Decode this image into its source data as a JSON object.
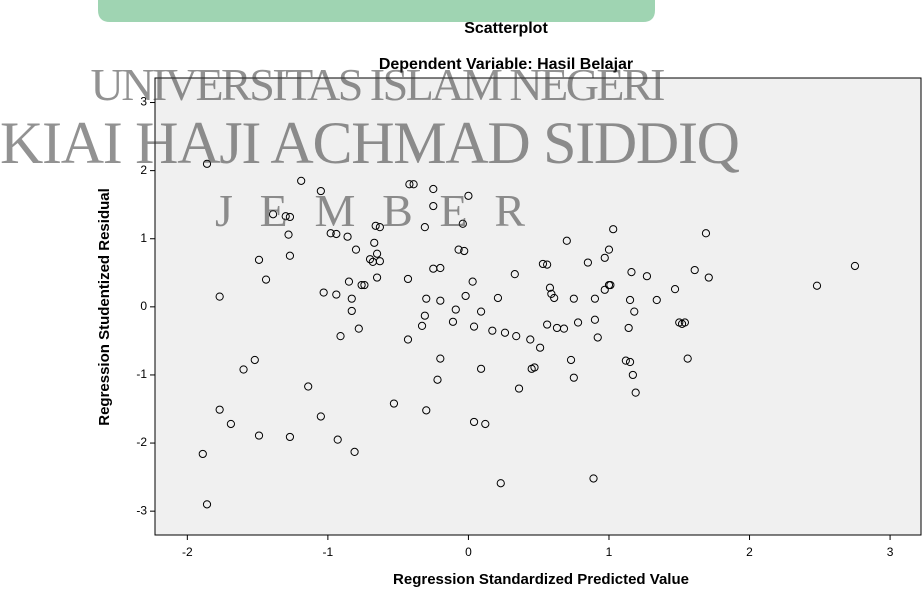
{
  "chart_data": {
    "type": "scatter",
    "title": "Scatterplot",
    "subtitle": "Dependent Variable: Hasil Belajar",
    "x_label": "Regression Standardized Predicted Value",
    "y_label": "Regression Studentized Residual",
    "watermark": [
      "UNIVERSITAS ISLAM NEGERI",
      "KIAI HAJI ACHMAD SIDDIQ",
      "J E M B E R"
    ],
    "xlim": [
      -2.23,
      3.22
    ],
    "ylim": [
      -3.35,
      3.36
    ],
    "xticks": [
      -2,
      -1,
      0,
      1,
      2,
      3
    ],
    "yticks": [
      -3,
      -2,
      -1,
      0,
      1,
      2,
      3
    ],
    "grid": false,
    "color": "#000000",
    "x": [
      -1.86,
      -1.19,
      -0.42,
      -0.39,
      -0.25,
      0.0,
      -1.05,
      -0.25,
      -1.39,
      -1.3,
      -1.27,
      -0.66,
      -0.63,
      -0.31,
      -0.04,
      -1.28,
      -0.98,
      -0.94,
      -0.86,
      1.03,
      0.7,
      -0.67,
      -1.27,
      -1.49,
      -0.8,
      -0.65,
      -0.03,
      -0.07,
      1.69,
      1.0,
      0.97,
      -0.68,
      -0.7,
      -0.63,
      0.85,
      0.53,
      0.56,
      -0.2,
      -0.25,
      1.61,
      1.16,
      0.33,
      1.27,
      1.71,
      -1.44,
      -0.65,
      -0.85,
      -0.76,
      -0.74,
      -0.43,
      0.03,
      0.58,
      0.59,
      0.61,
      1.0,
      1.01,
      0.97,
      1.47,
      -1.77,
      -1.03,
      -0.94,
      -0.83,
      -0.02,
      -0.3,
      -0.2,
      0.21,
      0.75,
      0.9,
      1.34,
      1.15,
      -0.83,
      -0.31,
      -0.09,
      0.09,
      1.18,
      1.54,
      1.52,
      1.5,
      0.78,
      0.9,
      0.56,
      0.63,
      0.68,
      1.14,
      -0.11,
      -0.33,
      -0.78,
      0.04,
      0.17,
      0.26,
      0.34,
      0.44,
      0.51,
      -0.91,
      -0.43,
      0.92,
      -1.52,
      -1.6,
      -0.2,
      0.73,
      1.12,
      1.15,
      1.56,
      0.09,
      0.47,
      0.45,
      -0.22,
      0.75,
      1.17,
      -1.14,
      0.36,
      1.19,
      -0.53,
      -1.77,
      -0.3,
      -1.05,
      -1.69,
      0.04,
      0.12,
      -1.49,
      -1.27,
      -0.93,
      -0.81,
      -1.89,
      0.23,
      0.89,
      -1.86,
      2.48,
      2.75
    ],
    "y": [
      2.1,
      1.85,
      1.8,
      1.8,
      1.73,
      1.63,
      1.7,
      1.48,
      1.36,
      1.33,
      1.32,
      1.19,
      1.17,
      1.17,
      1.22,
      1.06,
      1.08,
      1.07,
      1.03,
      1.14,
      0.97,
      0.94,
      0.75,
      0.69,
      0.84,
      0.78,
      0.82,
      0.84,
      1.08,
      0.84,
      0.72,
      0.66,
      0.7,
      0.67,
      0.65,
      0.63,
      0.62,
      0.57,
      0.56,
      0.54,
      0.51,
      0.48,
      0.45,
      0.43,
      0.4,
      0.43,
      0.37,
      0.32,
      0.32,
      0.41,
      0.37,
      0.28,
      0.19,
      0.13,
      0.32,
      0.32,
      0.25,
      0.26,
      0.15,
      0.21,
      0.18,
      0.12,
      0.16,
      0.12,
      0.09,
      0.13,
      0.12,
      0.12,
      0.1,
      0.1,
      -0.06,
      -0.13,
      -0.04,
      -0.07,
      -0.07,
      -0.23,
      -0.25,
      -0.23,
      -0.23,
      -0.19,
      -0.26,
      -0.31,
      -0.32,
      -0.31,
      -0.22,
      -0.28,
      -0.32,
      -0.29,
      -0.35,
      -0.38,
      -0.43,
      -0.48,
      -0.6,
      -0.43,
      -0.48,
      -0.45,
      -0.78,
      -0.92,
      -0.76,
      -0.78,
      -0.79,
      -0.81,
      -0.76,
      -0.91,
      -0.89,
      -0.91,
      -1.07,
      -1.04,
      -1.0,
      -1.17,
      -1.2,
      -1.26,
      -1.42,
      -1.51,
      -1.52,
      -1.61,
      -1.72,
      -1.69,
      -1.72,
      -1.89,
      -1.91,
      -1.95,
      -2.13,
      -2.16,
      -2.59,
      -2.52,
      -2.9,
      0.31,
      0.6
    ]
  }
}
